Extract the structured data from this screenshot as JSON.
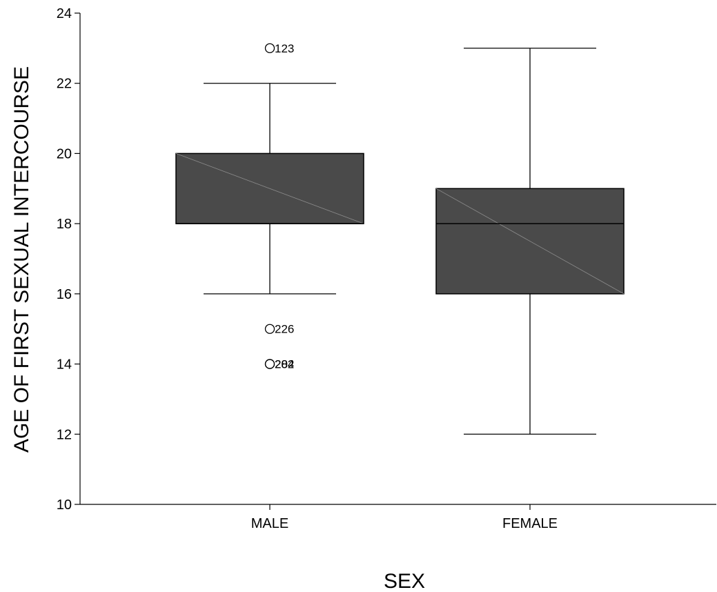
{
  "chart_data": {
    "type": "boxplot",
    "xlabel": "SEX",
    "ylabel": "AGE OF FIRST SEXUAL INTERCOURSE",
    "ylim": [
      10,
      24
    ],
    "yticks": [
      "10",
      "12",
      "14",
      "16",
      "18",
      "20",
      "22",
      "24"
    ],
    "categories": [
      "MALE",
      "FEMALE"
    ],
    "box_color": "#4a4a4a",
    "boxes": [
      {
        "category": "MALE",
        "whisker_low": 16,
        "q1": 18,
        "median": 18,
        "q3": 20,
        "whisker_high": 22,
        "outliers": [
          {
            "value": 23,
            "label": "123"
          },
          {
            "value": 15,
            "label": "226"
          },
          {
            "value": 14,
            "label": "202"
          },
          {
            "value": 14,
            "label": "284"
          }
        ]
      },
      {
        "category": "FEMALE",
        "whisker_low": 12,
        "q1": 16,
        "median": 18,
        "q3": 19,
        "whisker_high": 23,
        "outliers": []
      }
    ]
  }
}
